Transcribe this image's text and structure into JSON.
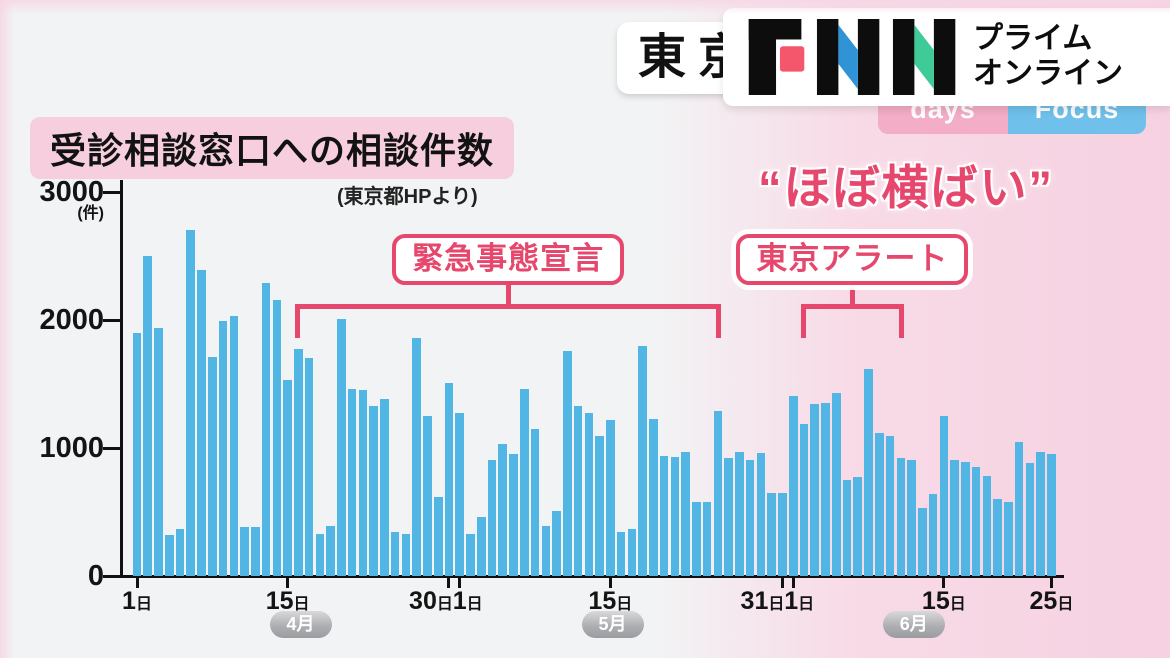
{
  "colors": {
    "accent_pink": "#e6476d",
    "bar_blue": "#52b6e5",
    "title_highlight": "#f6cedd",
    "bg_gray": "#f2f3f4",
    "bg_pink": "#f6d1e1",
    "tab_pink": "#f3adc6",
    "tab_blue": "#6fc0ea"
  },
  "header": {
    "headline": "東京",
    "logo": {
      "text": "FNN",
      "tagline_line1": "プライム",
      "tagline_line2": "オンライン",
      "colors": {
        "red": "#f4566c",
        "blue": "#2f93d6",
        "green": "#3ecb97",
        "black": "#0d0d0d"
      }
    },
    "tabs": [
      {
        "label": "days"
      },
      {
        "label": "Focus"
      }
    ]
  },
  "title": {
    "text": "受診相談窓口への相談件数",
    "source": "(東京都HPより)"
  },
  "trend": {
    "text": "“ほぼ横ばい”"
  },
  "chart_data": {
    "type": "bar",
    "title": "受診相談窓口への相談件数",
    "source": "(東京都HPより)",
    "unit_label": "(件)",
    "ylim": [
      0,
      3000
    ],
    "y_ticks": [
      0,
      1000,
      2000,
      3000
    ],
    "bar_color": "#52b6e5",
    "months": [
      {
        "month": "4月",
        "values": [
          1900,
          2500,
          1940,
          320,
          370,
          2700,
          2390,
          1710,
          1990,
          2030,
          380,
          385,
          2290,
          2160,
          1535,
          1770,
          1700,
          330,
          390,
          2010,
          1460,
          1450,
          1330,
          1380,
          340,
          330,
          1860,
          1250,
          620,
          1510
        ]
      },
      {
        "month": "5月",
        "values": [
          1270,
          330,
          460,
          910,
          1030,
          950,
          1460,
          1150,
          390,
          510,
          1760,
          1330,
          1270,
          1090,
          1220,
          340,
          370,
          1800,
          1230,
          940,
          930,
          970,
          580,
          580,
          1290,
          920,
          970,
          910,
          960,
          650,
          650
        ]
      },
      {
        "month": "6月",
        "values": [
          1410,
          1190,
          1340,
          1350,
          1430,
          750,
          770,
          1620,
          1120,
          1090,
          920,
          910,
          530,
          640,
          1250,
          910,
          890,
          850,
          780,
          600,
          580,
          1050,
          880,
          970,
          950
        ]
      }
    ],
    "x_ticks": [
      {
        "index": 0,
        "label": "1日",
        "dx": 0
      },
      {
        "index": 14,
        "label": "15日",
        "dx": 0
      },
      {
        "index": 29,
        "label": "30日",
        "dx": -18
      },
      {
        "index": 30,
        "label": "1日",
        "dx": 8
      },
      {
        "index": 44,
        "label": "15日",
        "dx": 0
      },
      {
        "index": 60,
        "label": "31日",
        "dx": -20
      },
      {
        "index": 61,
        "label": "1日",
        "dx": 6
      },
      {
        "index": 75,
        "label": "15日",
        "dx": 0
      },
      {
        "index": 85,
        "label": "25日",
        "dx": 0
      }
    ],
    "month_badges": [
      {
        "label": "4月",
        "index": 15.2
      },
      {
        "label": "5月",
        "index": 44.2
      },
      {
        "label": "6月",
        "index": 72.2
      }
    ],
    "annotations": [
      {
        "label": "緊急事態宣言",
        "from_index": 15,
        "to_index": 54
      },
      {
        "label": "東京アラート",
        "from_index": 62,
        "to_index": 71
      }
    ]
  }
}
